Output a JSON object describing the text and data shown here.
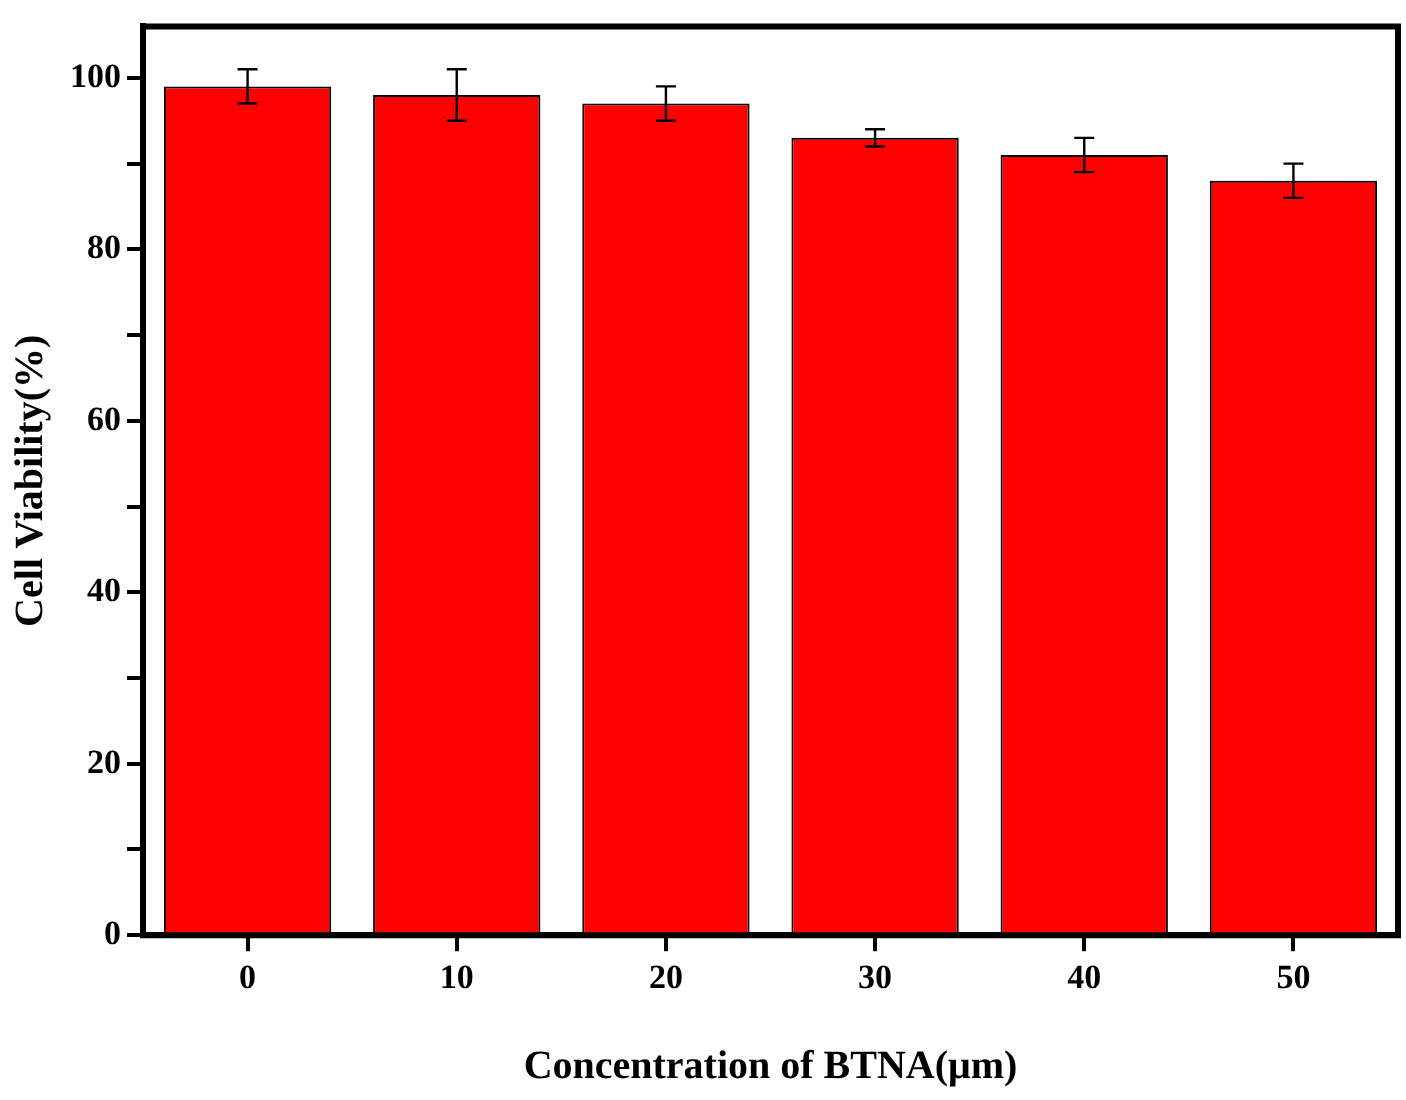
{
  "chart_data": {
    "type": "bar",
    "xlabel": "Concentration of BTNA(μm)",
    "ylabel": "Cell Viability(%)",
    "categories": [
      "0",
      "10",
      "20",
      "30",
      "40",
      "50"
    ],
    "values": [
      99,
      98,
      97,
      93,
      91,
      88
    ],
    "errors": [
      2,
      3,
      2,
      1,
      2,
      2
    ],
    "color": "#ff0000",
    "ylim": [
      0,
      106
    ],
    "yticks": [
      0,
      {
        "value": 10,
        "label": null
      },
      20,
      {
        "value": 30,
        "label": null
      },
      40,
      {
        "value": 50,
        "label": null
      },
      60,
      {
        "value": 70,
        "label": null
      },
      80,
      {
        "value": 90,
        "label": null
      },
      100
    ],
    "grid": false,
    "legend": false
  }
}
